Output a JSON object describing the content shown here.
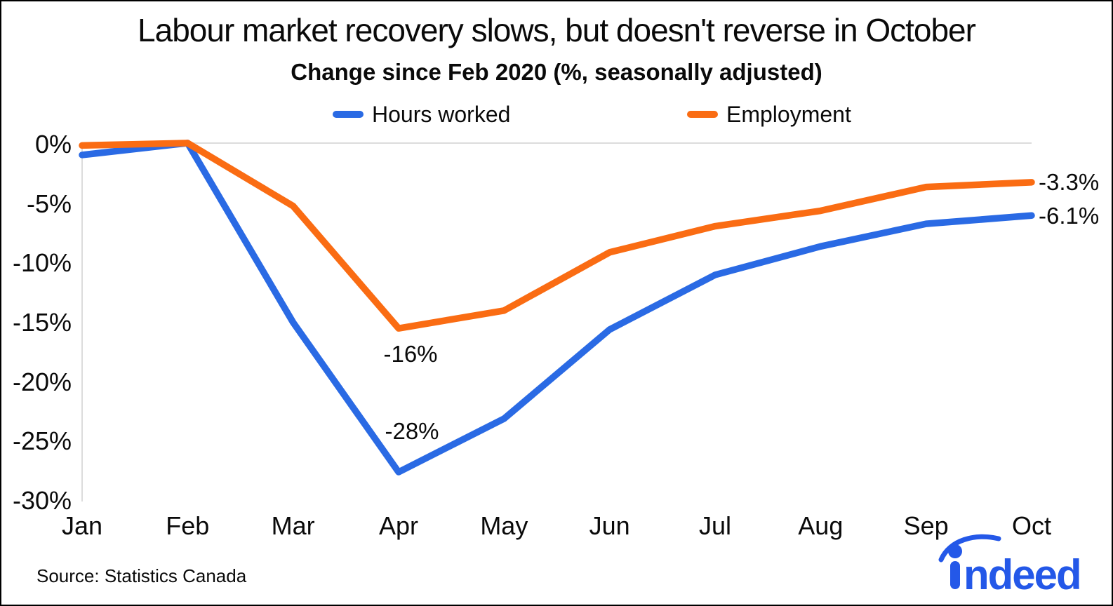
{
  "title": "Labour market recovery slows, but doesn't reverse in October",
  "subtitle": "Change since Feb 2020 (%, seasonally adjusted)",
  "legend": {
    "hours_label": "Hours worked",
    "employment_label": "Employment"
  },
  "chart_data": {
    "type": "line",
    "categories": [
      "Jan",
      "Feb",
      "Mar",
      "Apr",
      "May",
      "Jun",
      "Jul",
      "Aug",
      "Sep",
      "Oct"
    ],
    "series": [
      {
        "name": "Hours worked",
        "color": "#2a6ae4",
        "values": [
          -1.0,
          0.0,
          -15.1,
          -27.7,
          -23.2,
          -15.7,
          -11.1,
          -8.7,
          -6.8,
          -6.1
        ],
        "end_label": "-6.1%"
      },
      {
        "name": "Employment",
        "color": "#fa6c13",
        "values": [
          -0.2,
          0.0,
          -5.3,
          -15.6,
          -14.1,
          -9.2,
          -7.0,
          -5.7,
          -3.7,
          -3.3
        ],
        "end_label": "-3.3%"
      }
    ],
    "y_ticks": [
      "0%",
      "-5%",
      "-10%",
      "-15%",
      "-20%",
      "-25%",
      "-30%"
    ],
    "ylim": [
      -30,
      0
    ],
    "grid": "horizontal line at 0% only",
    "legend_position": "top",
    "annotations": [
      {
        "text": "-16%",
        "series": "Employment",
        "month": "Apr",
        "value": -15.6
      },
      {
        "text": "-28%",
        "series": "Hours worked",
        "month": "Apr",
        "value": -27.7
      }
    ]
  },
  "end_labels": {
    "employment": "-3.3%",
    "hours": "-6.1%"
  },
  "annotation_labels": {
    "employment_apr": "-16%",
    "hours_apr": "-28%"
  },
  "source": "Source: Statistics Canada",
  "logo": {
    "text": "ndeed",
    "full_text": "indeed",
    "color": "#2458e8"
  },
  "colors": {
    "hours_line": "#2a6ae4",
    "employment_line": "#fa6c13",
    "gridline": "#dcdcdc",
    "text": "#0a0a0a"
  }
}
